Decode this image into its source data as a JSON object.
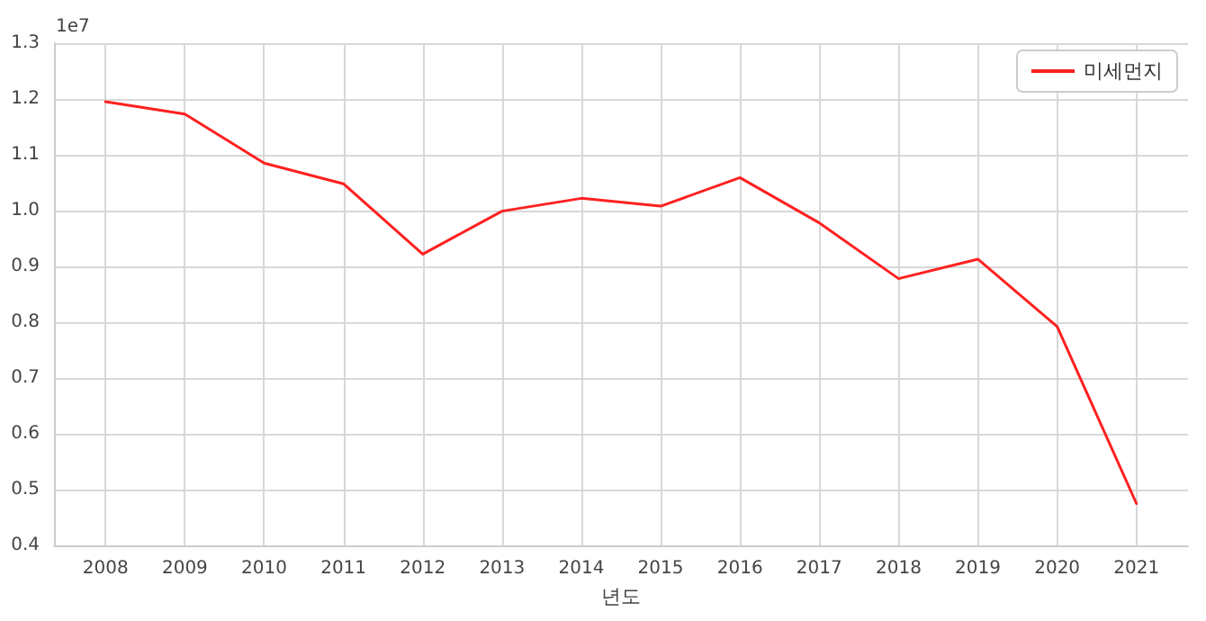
{
  "chart_data": {
    "type": "line",
    "xlabel": "년도",
    "annotations": [
      "1e7"
    ],
    "x": [
      2008,
      2009,
      2010,
      2011,
      2012,
      2013,
      2014,
      2015,
      2016,
      2017,
      2018,
      2019,
      2020,
      2021
    ],
    "series": [
      {
        "name": "미세먼지",
        "color": "#ff2020",
        "values": [
          1.195,
          1.173,
          1.085,
          1.048,
          0.922,
          0.999,
          1.022,
          1.008,
          1.059,
          0.978,
          0.878,
          0.913,
          0.792,
          0.475
        ]
      }
    ],
    "xlim": [
      2007.35,
      2021.65
    ],
    "xticks": [
      2008,
      2009,
      2010,
      2011,
      2012,
      2013,
      2014,
      2015,
      2016,
      2017,
      2018,
      2019,
      2020,
      2021
    ],
    "ylim": [
      0.4,
      1.3
    ],
    "yticks": [
      0.4,
      0.5,
      0.6,
      0.7,
      0.8,
      0.9,
      {
        "value": 1.0,
        "label": "1.0"
      },
      1.1,
      1.2,
      1.3
    ],
    "grid": true,
    "legend": "top right",
    "marker": "none",
    "line_style": "solid"
  }
}
